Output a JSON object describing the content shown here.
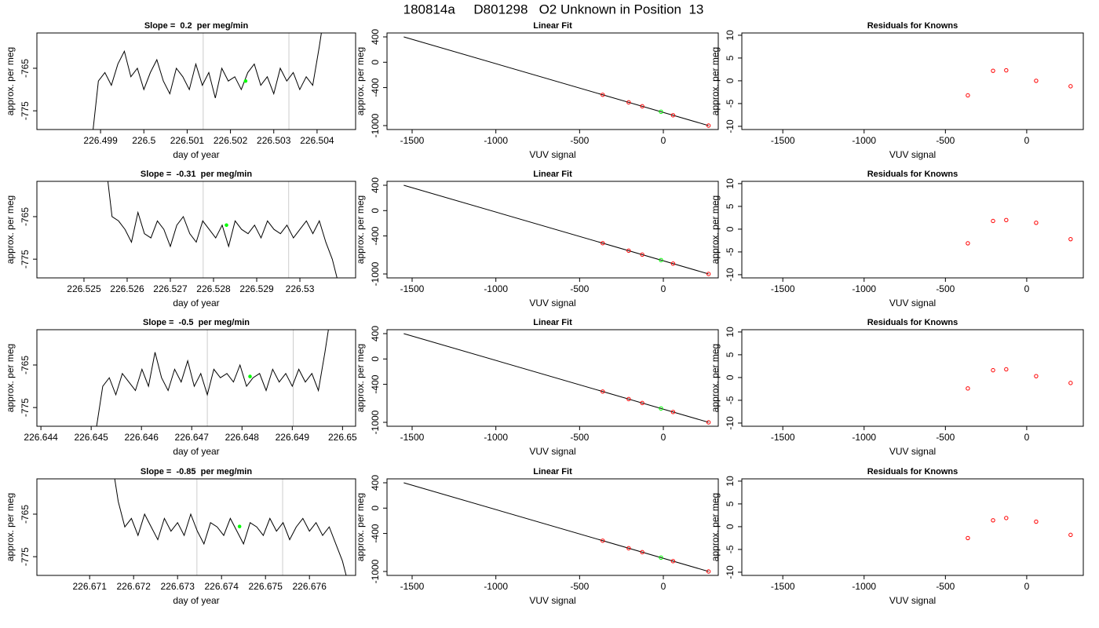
{
  "title": "180814a     D801298   O2 Unknown in Position  13",
  "chart_data": [
    {
      "type": "line",
      "title": "Slope =  0.2  per meg/min",
      "x_label": "day of year",
      "y_label": "approx. per meg",
      "x": [
        226.4988,
        226.49895,
        226.4991,
        226.49925,
        226.4994,
        226.49955,
        226.4997,
        226.49985,
        226.5,
        226.50015,
        226.5003,
        226.50045,
        226.5006,
        226.50075,
        226.5009,
        226.50105,
        226.5012,
        226.50135,
        226.5015,
        226.50165,
        226.5018,
        226.50195,
        226.5021,
        226.50225,
        226.5024,
        226.50255,
        226.5027,
        226.50285,
        226.503,
        226.50315,
        226.5033,
        226.50345,
        226.5036,
        226.50375,
        226.5039,
        226.50405,
        226.5042
      ],
      "series": [
        {
          "color": "#000000",
          "values": [
            -782,
            -768,
            -766,
            -769,
            -764,
            -761,
            -767,
            -765,
            -770,
            -766,
            -763,
            -768,
            -771,
            -765,
            -767,
            -770,
            -764,
            -769,
            -766,
            -772,
            -765,
            -768,
            -767,
            -770,
            -766,
            -764,
            -769,
            -767,
            -771,
            -765,
            -768,
            -766,
            -770,
            -767,
            -769,
            -760,
            -750
          ]
        }
      ],
      "vlines": [
        226.50137,
        226.50335
      ],
      "vline_color": "#cccccc",
      "highlight": {
        "x": 226.50235,
        "value": -768,
        "color": "#00ff00"
      },
      "xlim": [
        226.49753,
        226.50489
      ],
      "ylim": [
        -779.4,
        -756.7
      ],
      "xticks": [
        226.499,
        226.5,
        226.501,
        226.502,
        226.503,
        226.504
      ],
      "yticks": [
        -765,
        -775
      ]
    },
    {
      "type": "fit",
      "title": "Linear Fit",
      "x_label": "VUV signal",
      "y_label": "approx. per meg",
      "line": {
        "x": [
          -1550,
          270
        ],
        "values": [
          400,
          -1000
        ],
        "color": "#000000"
      },
      "points": {
        "x": [
          -362,
          -207,
          -126,
          58,
          270
        ],
        "values": [
          -514,
          -633,
          -695,
          -837,
          -1000
        ],
        "color": "#ff0000"
      },
      "unknown": {
        "x": [
          -14
        ],
        "values": [
          -781
        ],
        "color": "#00ff00"
      },
      "xlim": [
        -1650,
        328
      ],
      "ylim": [
        -1062,
        462
      ],
      "xticks": [
        -1500,
        -1000,
        -500,
        0
      ],
      "yticks": [
        400,
        0,
        -400,
        -1000
      ]
    },
    {
      "type": "scatter",
      "title": "Residuals for Knowns",
      "x_label": "VUV signal",
      "y_label": "approx. per meg",
      "x": [
        -362,
        -207,
        -126,
        58,
        270
      ],
      "values": [
        -3.2,
        2.2,
        2.3,
        0,
        -1.2
      ],
      "color": "#ff0000",
      "xlim": [
        -1752,
        348
      ],
      "ylim": [
        -10.7,
        10.5
      ],
      "xticks": [
        -1500,
        -1000,
        -500,
        0
      ],
      "yticks": [
        -10,
        -5,
        0,
        5,
        10
      ]
    },
    {
      "type": "line",
      "title": "Slope =  -0.31  per meg/min",
      "x_label": "day of year",
      "y_label": "approx. per meg",
      "x": [
        226.5255,
        226.52565,
        226.5258,
        226.52595,
        226.5261,
        226.52625,
        226.5264,
        226.52655,
        226.5267,
        226.52685,
        226.527,
        226.52715,
        226.5273,
        226.52745,
        226.5276,
        226.52775,
        226.5279,
        226.52805,
        226.5282,
        226.52835,
        226.5285,
        226.52865,
        226.5288,
        226.52895,
        226.5291,
        226.52925,
        226.5294,
        226.52955,
        226.5297,
        226.52985,
        226.53,
        226.53015,
        226.5303,
        226.53045,
        226.5306,
        226.53075,
        226.5309
      ],
      "series": [
        {
          "color": "#000000",
          "values": [
            -752,
            -765,
            -766,
            -768,
            -771,
            -764,
            -769,
            -770,
            -766,
            -768,
            -772,
            -767,
            -765,
            -769,
            -771,
            -766,
            -768,
            -770,
            -767,
            -772,
            -766,
            -768,
            -769,
            -767,
            -770,
            -766,
            -768,
            -769,
            -767,
            -770,
            -768,
            -766,
            -769,
            -766,
            -771,
            -775,
            -781
          ]
        }
      ],
      "vlines": [
        226.52776,
        226.52974
      ],
      "vline_color": "#cccccc",
      "highlight": {
        "x": 226.5283,
        "value": -767,
        "color": "#00ff00"
      },
      "xlim": [
        226.52391,
        226.53129
      ],
      "ylim": [
        -779.4,
        -756.7
      ],
      "xticks": [
        226.525,
        226.526,
        226.527,
        226.528,
        226.529,
        226.53
      ],
      "yticks": [
        -765,
        -775
      ]
    },
    {
      "type": "fit",
      "title": "Linear Fit",
      "x_label": "VUV signal",
      "y_label": "approx. per meg",
      "line": {
        "x": [
          -1550,
          270
        ],
        "values": [
          400,
          -1000
        ],
        "color": "#000000"
      },
      "points": {
        "x": [
          -362,
          -207,
          -126,
          58,
          270
        ],
        "values": [
          -514,
          -633,
          -695,
          -837,
          -1000
        ],
        "color": "#ff0000"
      },
      "unknown": {
        "x": [
          -14
        ],
        "values": [
          -781
        ],
        "color": "#00ff00"
      },
      "xlim": [
        -1650,
        328
      ],
      "ylim": [
        -1062,
        462
      ],
      "xticks": [
        -1500,
        -1000,
        -500,
        0
      ],
      "yticks": [
        400,
        0,
        -400,
        -1000
      ]
    },
    {
      "type": "scatter",
      "title": "Residuals for Knowns",
      "x_label": "VUV signal",
      "y_label": "approx. per meg",
      "x": [
        -362,
        -207,
        -126,
        58,
        270
      ],
      "values": [
        -3.1,
        1.8,
        2.0,
        1.4,
        -2.2
      ],
      "color": "#ff0000",
      "xlim": [
        -1752,
        348
      ],
      "ylim": [
        -10.7,
        10.5
      ],
      "xticks": [
        -1500,
        -1000,
        -500,
        0
      ],
      "yticks": [
        -10,
        -5,
        0,
        5,
        10
      ]
    },
    {
      "type": "line",
      "title": "Slope =  -0.5  per meg/min",
      "x_label": "day of year",
      "y_label": "approx. per meg",
      "x": [
        226.6451,
        226.64523,
        226.64536,
        226.64549,
        226.64562,
        226.64575,
        226.64588,
        226.64601,
        226.64614,
        226.64627,
        226.6464,
        226.64653,
        226.64666,
        226.64679,
        226.64692,
        226.64705,
        226.64718,
        226.64731,
        226.64744,
        226.64757,
        226.6477,
        226.64783,
        226.64796,
        226.64809,
        226.64822,
        226.64835,
        226.64848,
        226.64861,
        226.64874,
        226.64887,
        226.649,
        226.64913,
        226.64926,
        226.64939,
        226.64952,
        226.64965,
        226.64978
      ],
      "series": [
        {
          "color": "#000000",
          "values": [
            -780,
            -770,
            -768,
            -772,
            -767,
            -769,
            -771,
            -766,
            -770,
            -762,
            -768,
            -771,
            -766,
            -769,
            -764,
            -770,
            -767,
            -772,
            -766,
            -768,
            -767,
            -769,
            -765,
            -770,
            -768,
            -767,
            -771,
            -766,
            -769,
            -767,
            -770,
            -766,
            -769,
            -767,
            -771,
            -762,
            -752
          ]
        }
      ],
      "vlines": [
        226.64731,
        226.64902
      ],
      "vline_color": "#cccccc",
      "highlight": {
        "x": 226.64816,
        "value": -767.7,
        "color": "#00ff00"
      },
      "xlim": [
        226.64392,
        226.65026
      ],
      "ylim": [
        -779.4,
        -756.7
      ],
      "xticks": [
        226.644,
        226.645,
        226.646,
        226.647,
        226.648,
        226.649,
        226.65
      ],
      "yticks": [
        -765,
        -775
      ]
    },
    {
      "type": "fit",
      "title": "Linear Fit",
      "x_label": "VUV signal",
      "y_label": "approx. per meg",
      "line": {
        "x": [
          -1550,
          270
        ],
        "values": [
          400,
          -1000
        ],
        "color": "#000000"
      },
      "points": {
        "x": [
          -362,
          -207,
          -126,
          58,
          270
        ],
        "values": [
          -514,
          -633,
          -695,
          -837,
          -1000
        ],
        "color": "#ff0000"
      },
      "unknown": {
        "x": [
          -14
        ],
        "values": [
          -781
        ],
        "color": "#00ff00"
      },
      "xlim": [
        -1650,
        328
      ],
      "ylim": [
        -1062,
        462
      ],
      "xticks": [
        -1500,
        -1000,
        -500,
        0
      ],
      "yticks": [
        400,
        0,
        -400,
        -1000
      ]
    },
    {
      "type": "scatter",
      "title": "Residuals for Knowns",
      "x_label": "VUV signal",
      "y_label": "approx. per meg",
      "x": [
        -362,
        -207,
        -126,
        58,
        270
      ],
      "values": [
        -2.4,
        1.6,
        1.8,
        0.3,
        -1.2
      ],
      "color": "#ff0000",
      "xlim": [
        -1752,
        348
      ],
      "ylim": [
        -10.7,
        10.5
      ],
      "xticks": [
        -1500,
        -1000,
        -500,
        0
      ],
      "yticks": [
        -10,
        -5,
        0,
        5,
        10
      ]
    },
    {
      "type": "line",
      "title": "Slope =  -0.85  per meg/min",
      "x_label": "day of year",
      "y_label": "approx. per meg",
      "x": [
        226.6715,
        226.67165,
        226.6718,
        226.67195,
        226.6721,
        226.67225,
        226.6724,
        226.67255,
        226.6727,
        226.67285,
        226.673,
        226.67315,
        226.6733,
        226.67345,
        226.6736,
        226.67375,
        226.6739,
        226.67405,
        226.6742,
        226.67435,
        226.6745,
        226.67465,
        226.6748,
        226.67495,
        226.6751,
        226.67525,
        226.6754,
        226.67555,
        226.6757,
        226.67585,
        226.676,
        226.67615,
        226.6763,
        226.67645,
        226.6766,
        226.67675,
        226.6769
      ],
      "series": [
        {
          "color": "#000000",
          "values": [
            -752,
            -762,
            -768,
            -766,
            -770,
            -765,
            -768,
            -771,
            -766,
            -769,
            -767,
            -770,
            -765,
            -769,
            -772,
            -767,
            -768,
            -770,
            -766,
            -769,
            -772,
            -767,
            -768,
            -770,
            -766,
            -769,
            -767,
            -771,
            -768,
            -766,
            -769,
            -767,
            -770,
            -768,
            -772,
            -776,
            -782
          ]
        }
      ],
      "vlines": [
        226.67344,
        226.67539
      ],
      "vline_color": "#cccccc",
      "highlight": {
        "x": 226.67441,
        "value": -767.9,
        "color": "#00ff00"
      },
      "xlim": [
        226.6698,
        226.67705
      ],
      "ylim": [
        -779.4,
        -756.7
      ],
      "xticks": [
        226.671,
        226.672,
        226.673,
        226.674,
        226.675,
        226.676
      ],
      "yticks": [
        -765,
        -775
      ]
    },
    {
      "type": "fit",
      "title": "Linear Fit",
      "x_label": "VUV signal",
      "y_label": "approx. per meg",
      "line": {
        "x": [
          -1550,
          270
        ],
        "values": [
          400,
          -1000
        ],
        "color": "#000000"
      },
      "points": {
        "x": [
          -362,
          -207,
          -126,
          58,
          270
        ],
        "values": [
          -514,
          -633,
          -695,
          -837,
          -1000
        ],
        "color": "#ff0000"
      },
      "unknown": {
        "x": [
          -14
        ],
        "values": [
          -781
        ],
        "color": "#00ff00"
      },
      "xlim": [
        -1650,
        328
      ],
      "ylim": [
        -1062,
        462
      ],
      "xticks": [
        -1500,
        -1000,
        -500,
        0
      ],
      "yticks": [
        400,
        0,
        -400,
        -1000
      ]
    },
    {
      "type": "scatter",
      "title": "Residuals for Knowns",
      "x_label": "VUV signal",
      "y_label": "approx. per meg",
      "x": [
        -362,
        -207,
        -126,
        58,
        270
      ],
      "values": [
        -2.5,
        1.4,
        1.9,
        1.1,
        -1.8
      ],
      "color": "#ff0000",
      "xlim": [
        -1752,
        348
      ],
      "ylim": [
        -10.7,
        10.5
      ],
      "xticks": [
        -1500,
        -1000,
        -500,
        0
      ],
      "yticks": [
        -10,
        -5,
        0,
        5,
        10
      ]
    }
  ]
}
